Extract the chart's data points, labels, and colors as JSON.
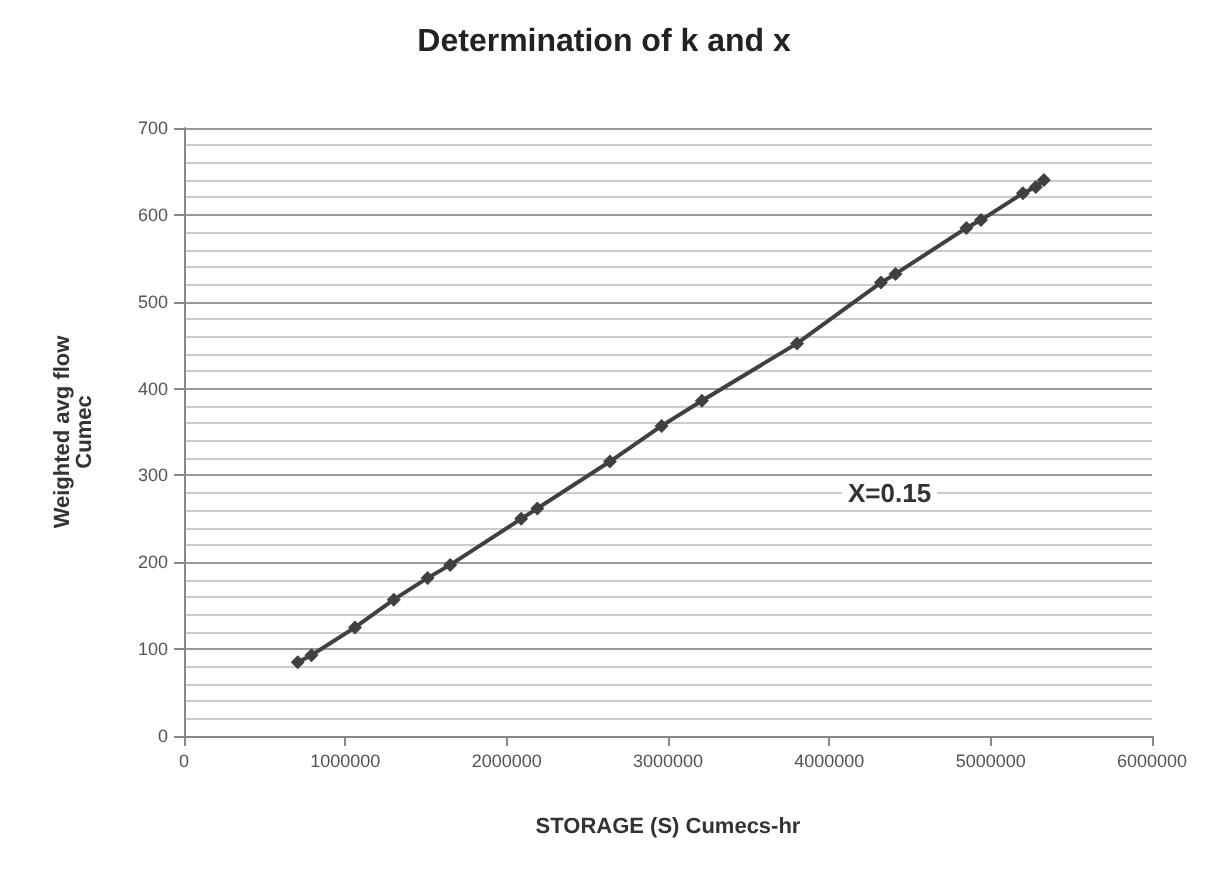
{
  "chart_data": {
    "type": "line",
    "title": "Determination of k and x",
    "xlabel": "STORAGE (S) Cumecs-hr",
    "ylabel": "Weighted avg flow\nCumec",
    "x": [
      705000,
      790000,
      1060000,
      1300000,
      1510000,
      1650000,
      2090000,
      2190000,
      2640000,
      2960000,
      3210000,
      3800000,
      4320000,
      4410000,
      4850000,
      4940000,
      5200000,
      5280000,
      5330000
    ],
    "series": [
      {
        "color": "#404040",
        "values": [
          85,
          93,
          125,
          157,
          182,
          197,
          250,
          262,
          316,
          357,
          386,
          452,
          522,
          532,
          585,
          594,
          625,
          632,
          640
        ]
      }
    ],
    "xlim": [
      0,
      6000000
    ],
    "xticks": [
      0,
      1000000,
      2000000,
      3000000,
      4000000,
      5000000,
      6000000
    ],
    "ylim": [
      0,
      700
    ],
    "yticks": [
      0,
      100,
      200,
      300,
      400,
      500,
      600,
      700
    ],
    "grid": "y",
    "marker": "diamond",
    "line_style": "solid",
    "annotations": [
      "X=0.15"
    ]
  }
}
